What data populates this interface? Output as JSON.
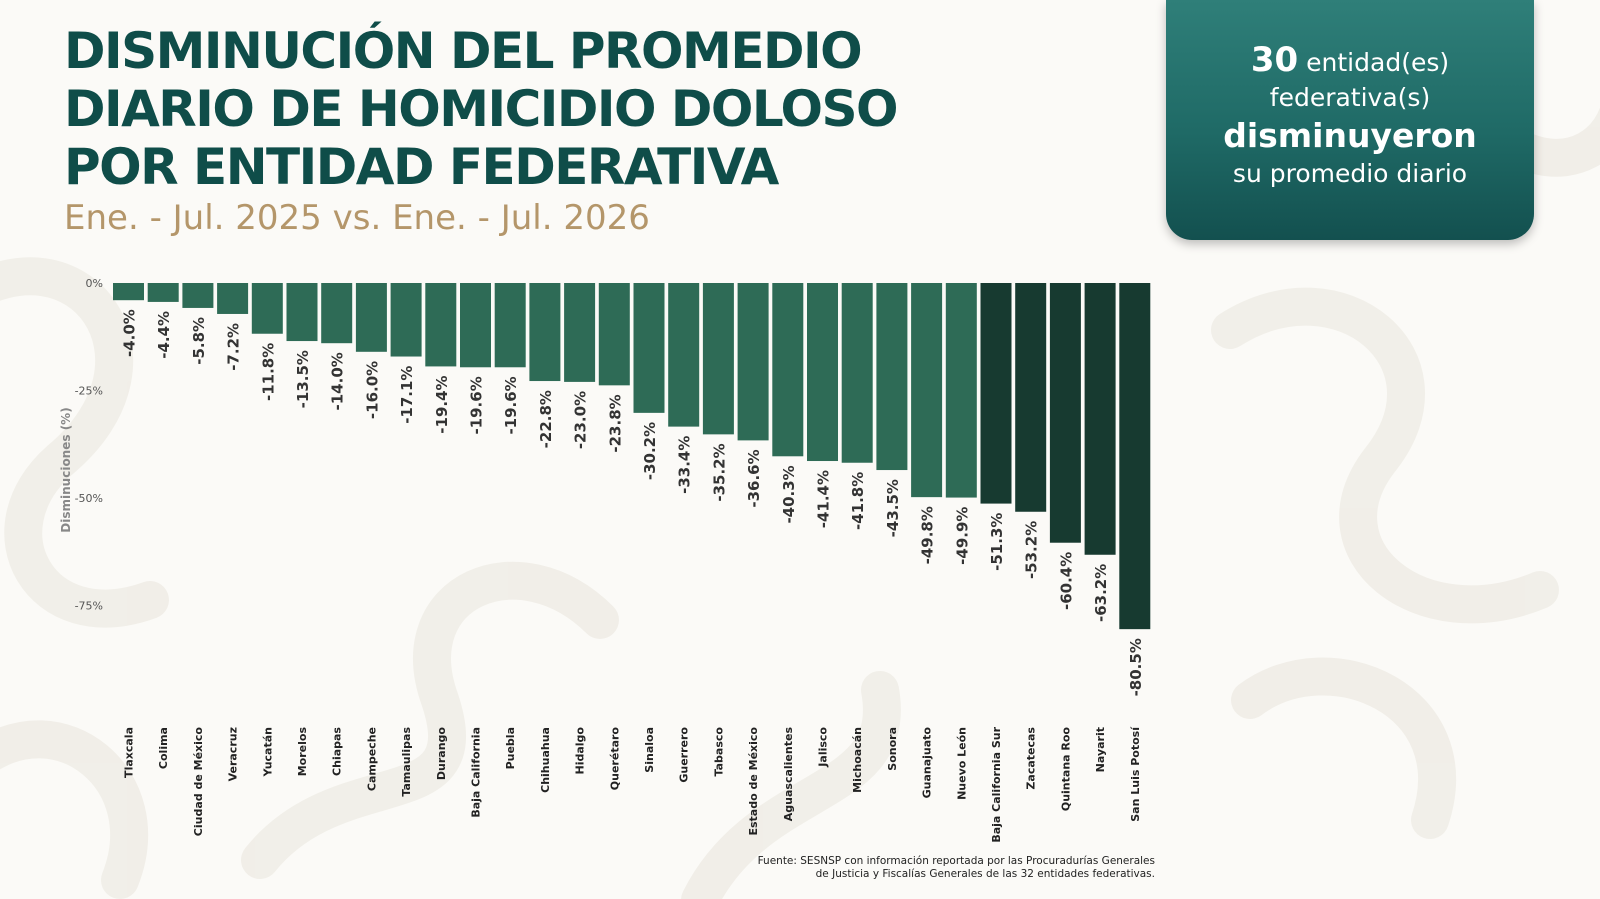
{
  "header": {
    "title_lines": [
      "DISMINUCIÓN DEL PROMEDIO",
      "DIARIO DE HOMICIDIO DOLOSO",
      "POR ENTIDAD FEDERATIVA"
    ],
    "subtitle": "Ene. - Jul. 2025 vs. Ene. - Jul. 2026"
  },
  "callout": {
    "count": "30",
    "line1_suffix": "entidad(es)",
    "line2": "federativa(s)",
    "line3": "disminuyeron",
    "line4": "su promedio diario"
  },
  "source": {
    "line1": "Fuente: SESNSP con información reportada por las Procuradurías Generales",
    "line2": "de Justicia y Fiscalías Generales de las 32 entidades federativas."
  },
  "colors": {
    "title": "#0f4d49",
    "subtitle": "#b4966a",
    "bar_medium": "#2e6b56",
    "bar_dark": "#173a30",
    "callout": "#1f6a66"
  },
  "chart_data": {
    "type": "bar",
    "ylabel": "Disminuciones (%)",
    "ylim": [
      -80.5,
      0
    ],
    "ytick_values": [
      0,
      -25,
      -50,
      -75
    ],
    "ytick_labels": [
      "0%",
      "-25%",
      "-50%",
      "-75%"
    ],
    "categories": [
      "Tlaxcala",
      "Colima",
      "Ciudad de México",
      "Veracruz",
      "Yucatán",
      "Morelos",
      "Chiapas",
      "Campeche",
      "Tamaulipas",
      "Durango",
      "Baja California",
      "Puebla",
      "Chihuahua",
      "Hidalgo",
      "Querétaro",
      "Sinaloa",
      "Guerrero",
      "Tabasco",
      "Estado de México",
      "Aguascalientes",
      "Jalisco",
      "Michoacán",
      "Sonora",
      "Guanajuato",
      "Nuevo León",
      "Baja California Sur",
      "Zacatecas",
      "Quintana Roo",
      "Nayarit",
      "San Luis Potosí"
    ],
    "values": [
      -4.0,
      -4.4,
      -5.8,
      -7.2,
      -11.8,
      -13.5,
      -14.0,
      -16.0,
      -17.1,
      -19.4,
      -19.6,
      -19.6,
      -22.8,
      -23.0,
      -23.8,
      -30.2,
      -33.4,
      -35.2,
      -36.6,
      -40.3,
      -41.4,
      -41.8,
      -43.5,
      -49.8,
      -49.9,
      -51.3,
      -53.2,
      -60.4,
      -63.2,
      -80.5
    ],
    "labels": [
      "-4.0%",
      "-4.4%",
      "-5.8%",
      "-7.2%",
      "-11.8%",
      "-13.5%",
      "-14.0%",
      "-16.0%",
      "-17.1%",
      "-19.4%",
      "-19.6%",
      "-19.6%",
      "-22.8%",
      "-23.0%",
      "-23.8%",
      "-30.2%",
      "-33.4%",
      "-35.2%",
      "-36.6%",
      "-40.3%",
      "-41.4%",
      "-41.8%",
      "-43.5%",
      "-49.8%",
      "-49.9%",
      "-51.3%",
      "-53.2%",
      "-60.4%",
      "-63.2%",
      "-80.5%"
    ],
    "grid": false,
    "legend": "none"
  }
}
